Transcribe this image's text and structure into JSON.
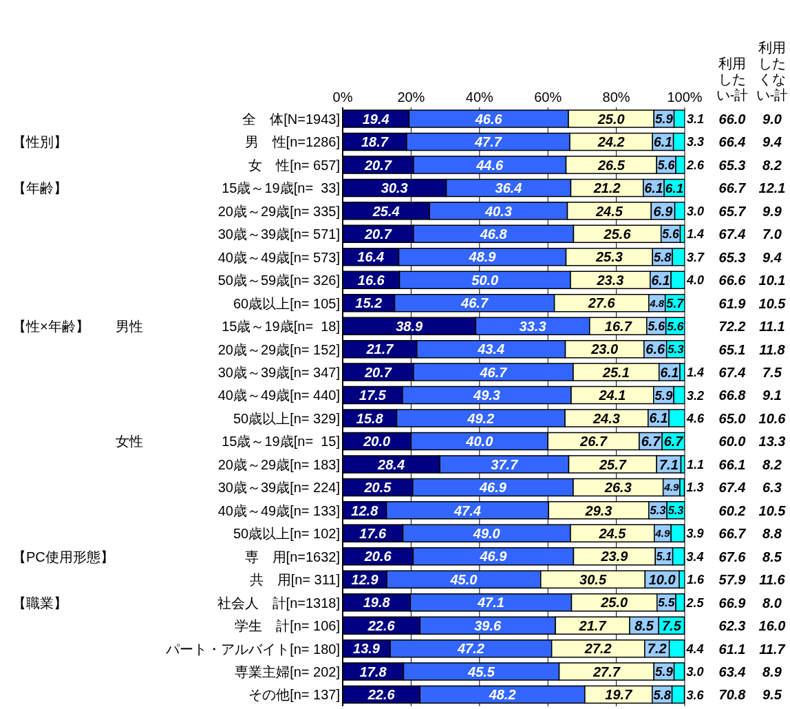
{
  "chart_data": [
    {
      "type": "bar",
      "orientation": "horizontal",
      "stacked": true,
      "grid": "x",
      "legend": false,
      "categories": [
        "全　体[N=1943]",
        "【性別】　　男　性[n=1286]",
        "女　性[n= 657]",
        "【年齢】　　15歳～19歳[n=  33]",
        "20歳～29歳[n= 335]",
        "30歳～39歳[n= 571]",
        "40歳～49歳[n= 573]",
        "50歳～59歳[n= 326]",
        "60歳以上[n= 105]",
        "【性×年齢】　　男性　　15歳～19歳[n=  18]",
        "20歳～29歳[n= 152]",
        "30歳～39歳[n= 347]",
        "40歳～49歳[n= 440]",
        "50歳以上[n= 329]",
        "　　女性　　15歳～19歳[n=  15]",
        "20歳～29歳[n= 183]",
        "30歳～39歳[n= 224]",
        "40歳～49歳[n= 133]",
        "50歳以上[n= 102]",
        "【PC使用形態】　　専　用[n=1632]",
        "共　用[n= 311]",
        "【職業】　　社会人　計[n=1318]",
        "学生　計[n= 106]",
        "パート・アルバイト[n= 180]",
        "専業主婦[n= 202]",
        "その他[n= 137]"
      ],
      "series": [
        {
          "color": "#000080",
          "values": [
            19.4,
            18.7,
            20.7,
            30.3,
            25.4,
            20.7,
            16.4,
            16.6,
            15.2,
            38.9,
            21.7,
            20.7,
            17.5,
            15.8,
            20.0,
            28.4,
            20.5,
            12.8,
            17.6,
            20.6,
            12.9,
            19.8,
            22.6,
            13.9,
            17.8,
            22.6
          ],
          "value_labels": [
            "19.4",
            "18.7",
            "20.7",
            "30.3",
            "25.4",
            "20.7",
            "16.4",
            "16.6",
            "15.2",
            "38.9",
            "21.7",
            "20.7",
            "17.5",
            "15.8",
            "20.0",
            "28.4",
            "20.5",
            "12.8",
            "17.6",
            "20.6",
            "12.9",
            "19.8",
            "22.6",
            "13.9",
            "17.8",
            "22.6"
          ]
        },
        {
          "color": "#3366ff",
          "values": [
            46.6,
            47.7,
            44.6,
            36.4,
            40.3,
            46.8,
            48.9,
            50.0,
            46.7,
            33.3,
            43.4,
            46.7,
            49.3,
            49.2,
            40.0,
            37.7,
            46.9,
            47.4,
            49.0,
            46.9,
            45.0,
            47.1,
            39.6,
            47.2,
            45.5,
            48.2
          ],
          "value_labels": [
            "46.6",
            "47.7",
            "44.6",
            "36.4",
            "40.3",
            "46.8",
            "48.9",
            "50.0",
            "46.7",
            "33.3",
            "43.4",
            "46.7",
            "49.3",
            "49.2",
            "40.0",
            "37.7",
            "46.9",
            "47.4",
            "49.0",
            "46.9",
            "45.0",
            "47.1",
            "39.6",
            "47.2",
            "45.5",
            "48.2"
          ]
        },
        {
          "color": "#ffffcc",
          "values": [
            25.0,
            24.2,
            26.5,
            21.2,
            24.5,
            25.6,
            25.3,
            23.3,
            27.6,
            16.7,
            23.0,
            25.1,
            24.1,
            24.3,
            26.7,
            25.7,
            26.3,
            29.3,
            24.5,
            23.9,
            30.5,
            25.0,
            21.7,
            27.2,
            27.7,
            19.7
          ],
          "value_labels": [
            "25.0",
            "24.2",
            "26.5",
            "21.2",
            "24.5",
            "25.6",
            "25.3",
            "23.3",
            "27.6",
            "16.7",
            "23.0",
            "25.1",
            "24.1",
            "24.3",
            "26.7",
            "25.7",
            "26.3",
            "29.3",
            "24.5",
            "23.9",
            "30.5",
            "25.0",
            "21.7",
            "27.2",
            "27.7",
            "19.7"
          ]
        },
        {
          "color": "#99ccff",
          "values": [
            5.9,
            6.1,
            5.6,
            6.1,
            6.9,
            5.6,
            5.8,
            6.1,
            4.8,
            5.6,
            6.6,
            6.1,
            5.9,
            6.1,
            6.7,
            7.1,
            4.9,
            5.3,
            4.9,
            5.1,
            10.0,
            5.5,
            8.5,
            7.2,
            5.9,
            5.8
          ],
          "value_labels": [
            "5.9",
            "6.1",
            "5.6",
            "6.1",
            "6.9",
            "5.6",
            "5.8",
            "6.1",
            "4.8",
            "5.6",
            "6.6",
            "6.1",
            "5.9",
            "6.1",
            "6.7",
            "7.1",
            "4.9",
            "5.3",
            "4.9",
            "5.1",
            "10.0",
            "5.5",
            "8.5",
            "7.2",
            "5.9",
            "5.8"
          ]
        },
        {
          "color": "#00ffff",
          "values": [
            3.1,
            3.3,
            2.6,
            6.1,
            3.0,
            1.4,
            3.7,
            4.0,
            5.7,
            5.6,
            5.3,
            1.4,
            3.2,
            4.6,
            6.7,
            1.1,
            1.3,
            5.3,
            3.9,
            3.4,
            1.6,
            2.5,
            7.5,
            4.4,
            3.0,
            3.6
          ],
          "value_labels": [
            "3.1",
            "3.3",
            "2.6",
            "6.1",
            "3.0",
            "1.4",
            "3.7",
            "4.0",
            "5.7",
            "5.6",
            "5.3",
            "1.4",
            "3.2",
            "4.6",
            "6.7",
            "1.1",
            "1.3",
            "5.3",
            "3.9",
            "3.4",
            "1.6",
            "2.5",
            "7.5",
            "4.4",
            "3.0",
            "3.6"
          ]
        }
      ],
      "xlim": [
        0,
        100
      ],
      "xticks": [
        {
          "value": 0,
          "label": "0%"
        },
        {
          "value": 20,
          "label": "20%"
        },
        {
          "value": 40,
          "label": "40%"
        },
        {
          "value": 60,
          "label": "60%"
        },
        {
          "value": 80,
          "label": "80%"
        },
        {
          "value": 100,
          "label": "100%"
        }
      ]
    },
    {
      "type": "other",
      "title": "利用したい-計",
      "categories": [
        null,
        null,
        null,
        null,
        null,
        null,
        null,
        null,
        null,
        null,
        null,
        null,
        null,
        null,
        null,
        null,
        null,
        null,
        null,
        null,
        null,
        null,
        null,
        null,
        null,
        null
      ],
      "value_labels": [
        "66.0",
        "66.4",
        "65.3",
        "66.7",
        "65.7",
        "67.4",
        "65.3",
        "66.6",
        "61.9",
        "72.2",
        "65.1",
        "67.4",
        "66.8",
        "65.0",
        "60.0",
        "66.1",
        "67.4",
        "60.2",
        "66.7",
        "67.6",
        "57.9",
        "66.9",
        "62.3",
        "61.1",
        "63.4",
        "70.8"
      ]
    },
    {
      "type": "other",
      "title": "利用したくない-計",
      "categories": [
        null,
        null,
        null,
        null,
        null,
        null,
        null,
        null,
        null,
        null,
        null,
        null,
        null,
        null,
        null,
        null,
        null,
        null,
        null,
        null,
        null,
        null,
        null,
        null,
        null,
        null
      ],
      "value_labels": [
        "9.0",
        "9.4",
        "8.2",
        "12.1",
        "9.9",
        "7.0",
        "9.4",
        "10.1",
        "10.5",
        "11.1",
        "11.8",
        "7.5",
        "9.1",
        "10.6",
        "13.3",
        "8.2",
        "6.3",
        "10.5",
        "8.8",
        "8.5",
        "11.6",
        "8.0",
        "16.0",
        "11.7",
        "8.9",
        "9.5"
      ]
    }
  ]
}
